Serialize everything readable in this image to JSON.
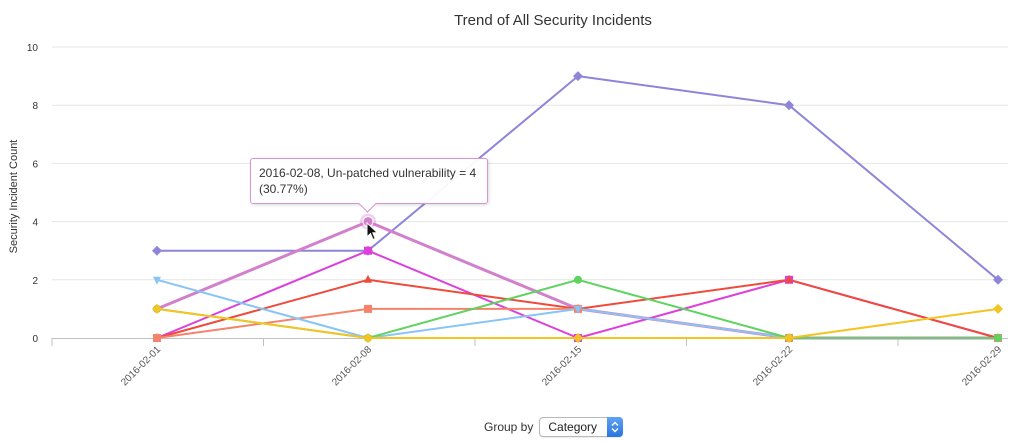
{
  "chart_data": {
    "type": "line",
    "title": "Trend of All Security Incidents",
    "ylabel": "Security Incident Count",
    "xlabel": "",
    "categories": [
      "2016-02-01",
      "2016-02-08",
      "2016-02-15",
      "2016-02-22",
      "2016-02-29"
    ],
    "ylim": [
      0,
      10
    ],
    "yticks": [
      0,
      2,
      4,
      6,
      8,
      10
    ],
    "grid": true,
    "series": [
      {
        "values": [
          3,
          3,
          9,
          8,
          2
        ],
        "color": "#8e85d8",
        "marker": "diamond"
      },
      {
        "values": [
          1,
          4,
          1,
          0,
          0
        ],
        "color": "#d27fcc",
        "marker": "circle"
      },
      {
        "values": [
          0,
          3,
          0,
          2,
          0
        ],
        "color": "#dd3fdc",
        "marker": "square"
      },
      {
        "values": [
          0,
          2,
          1,
          2,
          0
        ],
        "color": "#ef4a3c",
        "marker": "triangle"
      },
      {
        "values": [
          0,
          1,
          1,
          0,
          0
        ],
        "color": "#f5836b",
        "marker": "square"
      },
      {
        "values": [
          2,
          0,
          1,
          0,
          0
        ],
        "color": "#88c4f6",
        "marker": "triangle-down"
      },
      {
        "values": [
          1,
          0,
          2,
          0,
          0
        ],
        "color": "#5fd35f",
        "marker": "circle"
      },
      {
        "values": [
          1,
          0,
          0,
          0,
          1
        ],
        "color": "#f3c422",
        "marker": "diamond"
      }
    ]
  },
  "tooltip": {
    "line1": "2016-02-08, Un-patched vulnerability = 4",
    "line2": "(30.77%)"
  },
  "controls": {
    "groupby_label": "Group by",
    "groupby_value": "Category"
  }
}
